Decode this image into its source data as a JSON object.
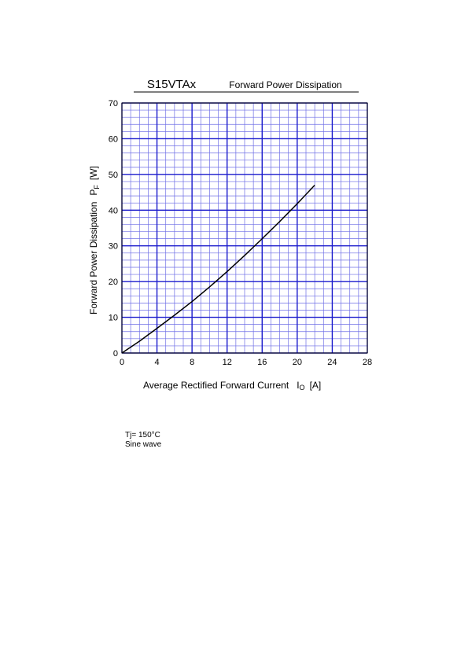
{
  "chart_data": {
    "type": "line",
    "title": "S15VTAx",
    "subtitle": "Forward Power Dissipation",
    "xlabel": "Average Rectified Forward Current",
    "xlabel_symbol": "I",
    "xlabel_subscript": "O",
    "xlabel_unit": "[A]",
    "ylabel": "Forward Power Dissipation",
    "ylabel_symbol": "P",
    "ylabel_subscript": "F",
    "ylabel_unit": "[W]",
    "xlim": [
      0,
      28
    ],
    "ylim": [
      0,
      70
    ],
    "xticks": [
      0,
      4,
      8,
      12,
      16,
      20,
      24,
      28
    ],
    "yticks": [
      0,
      10,
      20,
      30,
      40,
      50,
      60,
      70
    ],
    "x_minor_step": 1,
    "y_minor_step": 2,
    "grid": true,
    "colors": {
      "grid_major": "#1a1acc",
      "grid_minor": "#6e6ee6",
      "curve": "#000000",
      "frame": "#000000"
    },
    "series": [
      {
        "x": [
          0,
          2,
          4,
          6,
          8,
          10,
          12,
          14,
          16,
          18,
          20,
          22
        ],
        "y": [
          0,
          3.3,
          6.9,
          10.6,
          14.4,
          18.5,
          22.8,
          27.3,
          32.0,
          36.8,
          41.8,
          47.0
        ]
      }
    ]
  },
  "notes": {
    "line1": "Tj= 150°C",
    "line2": "Sine wave"
  }
}
